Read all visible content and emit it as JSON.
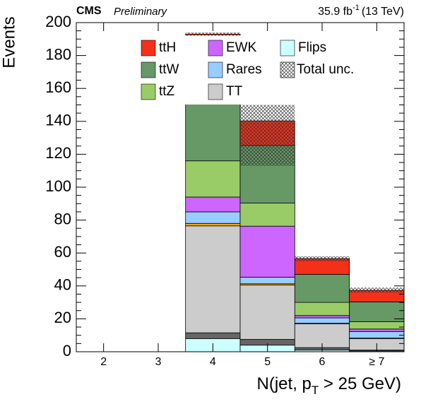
{
  "chart_data": {
    "type": "stacked_bar",
    "experiment": "CMS",
    "status": "Preliminary",
    "lumi": {
      "text": "35.9 fb",
      "sup": "-1",
      "rest": "(13 TeV)"
    },
    "y_label": "Events",
    "x_label": {
      "text": "N(jet, p",
      "sub": "T",
      "rest": " > 25 GeV)"
    },
    "categories": [
      "2",
      "3",
      "4",
      "5",
      "6",
      "≥ 7"
    ],
    "ylim": [
      0,
      200
    ],
    "yticks": [
      0,
      20,
      40,
      60,
      80,
      100,
      120,
      140,
      160,
      180,
      200
    ],
    "series": [
      {
        "name": "Flips",
        "color": "#ccffff",
        "values": [
          0,
          0,
          8,
          4,
          1,
          0.5
        ]
      },
      {
        "color": "#666666",
        "values": [
          0,
          0,
          3.5,
          3.5,
          1.5,
          0.5
        ]
      },
      {
        "name": "TT",
        "color": "#cccccc",
        "values": [
          0,
          0,
          65,
          33,
          14.5,
          7
        ]
      },
      {
        "color": "#ffaa00",
        "values": [
          0,
          0,
          1.5,
          0.8,
          0.3,
          0.3
        ]
      },
      {
        "name": "Rares",
        "color": "#99ccff",
        "values": [
          0,
          0,
          7,
          4,
          3.3,
          4
        ]
      },
      {
        "name": "EWK",
        "color": "#cc66ff",
        "values": [
          0,
          0,
          9,
          31,
          1.4,
          1.5
        ]
      },
      {
        "name": "ttZ",
        "color": "#99cc66",
        "values": [
          0,
          0,
          22,
          14,
          8,
          4.5
        ]
      },
      {
        "name": "ttW",
        "color": "#669966",
        "values": [
          0,
          0,
          58,
          35,
          17,
          12
        ]
      },
      {
        "name": "ttH",
        "color": "#f5301a",
        "values": [
          0,
          0,
          19,
          15,
          9.6,
          7
        ]
      }
    ],
    "uncertainty_name": "Total unc.",
    "unc_low": [
      null,
      null,
      192,
      113,
      55,
      36
    ],
    "unc_high": [
      null,
      null,
      194,
      150,
      58,
      39
    ]
  }
}
